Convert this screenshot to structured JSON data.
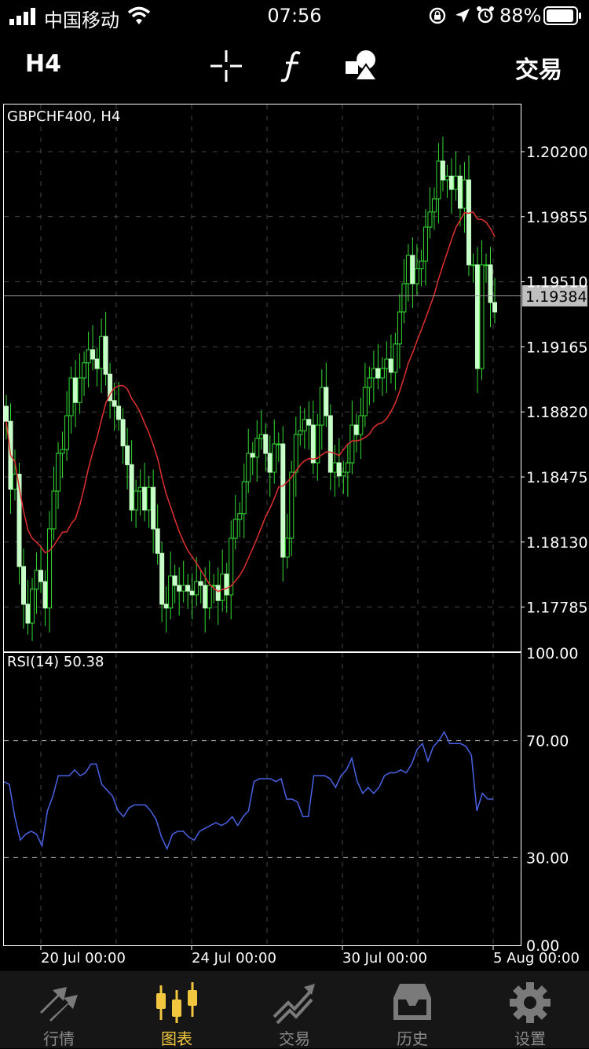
{
  "status_bar": {
    "carrier": "中国移动",
    "time": "07:56",
    "battery": "88%"
  },
  "toolbar": {
    "timeframe": "H4",
    "trade_label": "交易"
  },
  "chart": {
    "symbol_label": "GBPCHF400, H4",
    "current_price": "1.19384",
    "price_ticks": [
      "1.20200",
      "1.19855",
      "1.19510",
      "1.19165",
      "1.18820",
      "1.18475",
      "1.18130",
      "1.17785"
    ],
    "rsi_label": "RSI(14) 50.38",
    "rsi_ticks": [
      "100.00",
      "70.00",
      "30.00",
      "0.00"
    ],
    "time_labels": [
      "20 Jul 00:00",
      "24 Jul 00:00",
      "30 Jul 00:00",
      "5 Aug 00:00"
    ],
    "colors": {
      "bull": "#c8ffc8",
      "wick": "#33dd33",
      "ma": "#e03030",
      "rsi": "#4a63e6",
      "frame": "#ffffff",
      "grid": "#444444"
    }
  },
  "chart_data": [
    {
      "type": "candlestick",
      "title": "GBPCHF400, H4",
      "ylim": [
        1.1755,
        1.2045
      ],
      "yticks": [
        1.202,
        1.19855,
        1.1951,
        1.19165,
        1.1882,
        1.18475,
        1.1813,
        1.17785
      ],
      "x_tick_labels": [
        "20 Jul 00:00",
        "24 Jul 00:00",
        "30 Jul 00:00",
        "5 Aug 00:00"
      ],
      "last_price": 1.19384,
      "close": [
        1.1877,
        1.1841,
        1.1849,
        1.18,
        1.178,
        1.177,
        1.1788,
        1.1798,
        1.1792,
        1.1778,
        1.182,
        1.184,
        1.186,
        1.1862,
        1.188,
        1.19,
        1.1887,
        1.19,
        1.1908,
        1.1915,
        1.191,
        1.1905,
        1.1922,
        1.1902,
        1.1888,
        1.1885,
        1.1878,
        1.1864,
        1.1854,
        1.183,
        1.184,
        1.1842,
        1.183,
        1.1842,
        1.182,
        1.1807,
        1.178,
        1.1778,
        1.1795,
        1.179,
        1.1787,
        1.179,
        1.1787,
        1.1785,
        1.1792,
        1.179,
        1.1778,
        1.179,
        1.179,
        1.1782,
        1.1796,
        1.1785,
        1.1815,
        1.1825,
        1.1828,
        1.1845,
        1.186,
        1.1858,
        1.1868,
        1.187,
        1.186,
        1.185,
        1.1865,
        1.1865,
        1.1805,
        1.1815,
        1.185,
        1.187,
        1.1872,
        1.1878,
        1.1875,
        1.1855,
        1.1875,
        1.1895,
        1.188,
        1.185,
        1.1855,
        1.1848,
        1.185,
        1.1855,
        1.1875,
        1.187,
        1.188,
        1.1895,
        1.19,
        1.1905,
        1.19,
        1.1905,
        1.191,
        1.1903,
        1.1918,
        1.1935,
        1.195,
        1.1965,
        1.195,
        1.1958,
        1.1962,
        1.198,
        1.1988,
        1.1995,
        1.2015,
        1.2005,
        1.2007,
        1.2,
        1.2007,
        1.199,
        1.2005,
        1.196,
        1.196,
        1.1905,
        1.196,
        1.196,
        1.194,
        1.1935
      ]
    },
    {
      "type": "line",
      "title": "RSI(14) 50.38",
      "ylim": [
        0,
        100
      ],
      "yticks": [
        100,
        70,
        30,
        0
      ],
      "levels": [
        70,
        30
      ],
      "last_value": 50.38,
      "values": [
        56,
        55,
        44,
        36,
        38,
        39,
        38,
        34,
        46,
        51,
        58,
        58,
        58,
        60,
        58,
        59,
        62,
        62,
        55,
        53,
        51,
        46,
        44,
        47,
        48,
        48,
        48,
        46,
        43,
        37,
        33,
        38,
        39,
        39,
        37,
        36,
        39,
        40,
        41,
        42,
        41,
        42,
        44,
        41,
        44,
        46,
        56,
        57,
        57,
        57,
        56,
        57,
        50,
        50,
        49,
        44,
        44,
        58,
        58,
        58,
        57,
        54,
        58,
        60,
        64,
        56,
        52,
        54,
        52,
        54,
        58,
        59,
        59,
        60,
        59,
        62,
        67,
        69,
        63,
        68,
        70,
        73,
        69,
        69,
        69,
        68,
        65,
        46,
        52,
        50,
        50
      ]
    }
  ],
  "tabs": [
    {
      "label": "行情",
      "icon": "quotes-icon"
    },
    {
      "label": "图表",
      "icon": "chart-candles-icon"
    },
    {
      "label": "交易",
      "icon": "trade-icon"
    },
    {
      "label": "历史",
      "icon": "history-icon"
    },
    {
      "label": "设置",
      "icon": "gear-icon"
    }
  ]
}
